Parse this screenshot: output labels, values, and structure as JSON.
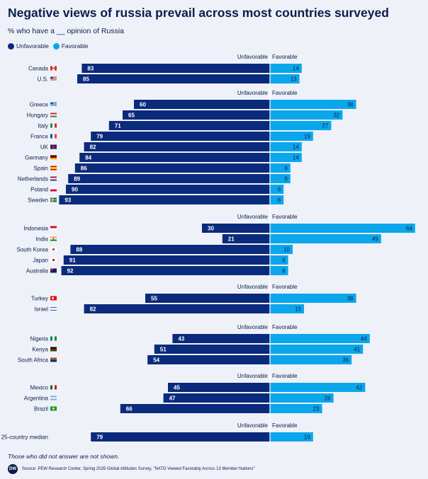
{
  "title": "Negative views of russia prevail across most countries surveyed",
  "subtitle": "% who have a __ opinion of Russia",
  "legend": {
    "unfavorable": "Unfavorable",
    "favorable": "Favorable"
  },
  "colors": {
    "unfavorable": "#0a2a7c",
    "favorable": "#0aa7ec",
    "background": "#eef1f7"
  },
  "footnote": "Those who did not answer are not shown.",
  "source": "Source: PEW Research Center, Spring 2025 Global Attitudes Survey, \"NATO Viewed Favorably Across 13 Member Nations\"",
  "logo_text": "DW",
  "chart_data": {
    "type": "bar",
    "orientation": "horizontal-diverging",
    "xlim": [
      0,
      100
    ],
    "series_names": [
      "Unfavorable",
      "Favorable"
    ],
    "groups": [
      {
        "header_left": "Unfavorable",
        "header_right": "Favorable",
        "rows": [
          {
            "country": "Canada",
            "flag": "canada",
            "unfavorable": 83,
            "favorable": 14
          },
          {
            "country": "U.S.",
            "flag": "us",
            "unfavorable": 85,
            "favorable": 13
          }
        ]
      },
      {
        "header_left": "Unfavorable",
        "header_right": "Favorable",
        "rows": [
          {
            "country": "Greece",
            "flag": "greece",
            "unfavorable": 60,
            "favorable": 38
          },
          {
            "country": "Hungary",
            "flag": "hungary",
            "unfavorable": 65,
            "favorable": 32
          },
          {
            "country": "Italy",
            "flag": "italy",
            "unfavorable": 71,
            "favorable": 27
          },
          {
            "country": "France",
            "flag": "france",
            "unfavorable": 79,
            "favorable": 19
          },
          {
            "country": "UK",
            "flag": "uk",
            "unfavorable": 82,
            "favorable": 14
          },
          {
            "country": "Germany",
            "flag": "germany",
            "unfavorable": 84,
            "favorable": 14
          },
          {
            "country": "Spain",
            "flag": "spain",
            "unfavorable": 86,
            "favorable": 9
          },
          {
            "country": "Netherlands",
            "flag": "netherlands",
            "unfavorable": 89,
            "favorable": 9
          },
          {
            "country": "Poland",
            "flag": "poland",
            "unfavorable": 90,
            "favorable": 6
          },
          {
            "country": "Sweden",
            "flag": "sweden",
            "unfavorable": 93,
            "favorable": 6
          }
        ]
      },
      {
        "header_left": "Unfavorable",
        "header_right": "Favorable",
        "rows": [
          {
            "country": "Indonesia",
            "flag": "indonesia",
            "unfavorable": 30,
            "favorable": 64
          },
          {
            "country": "India",
            "flag": "india",
            "unfavorable": 21,
            "favorable": 49
          },
          {
            "country": "South Korea",
            "flag": "south-korea",
            "unfavorable": 88,
            "favorable": 10
          },
          {
            "country": "Japan",
            "flag": "japan",
            "unfavorable": 91,
            "favorable": 8
          },
          {
            "country": "Australia",
            "flag": "australia",
            "unfavorable": 92,
            "favorable": 8
          }
        ]
      },
      {
        "header_left": "Unfavorable",
        "header_right": "Favorable",
        "rows": [
          {
            "country": "Turkey",
            "flag": "turkey",
            "unfavorable": 55,
            "favorable": 38
          },
          {
            "country": "Israel",
            "flag": "israel",
            "unfavorable": 82,
            "favorable": 15
          }
        ]
      },
      {
        "header_left": "Unfavorable",
        "header_right": "Favorable",
        "rows": [
          {
            "country": "Nigeria",
            "flag": "nigeria",
            "unfavorable": 43,
            "favorable": 44
          },
          {
            "country": "Kenya",
            "flag": "kenya",
            "unfavorable": 51,
            "favorable": 41
          },
          {
            "country": "South Africa",
            "flag": "south-africa",
            "unfavorable": 54,
            "favorable": 36
          }
        ]
      },
      {
        "header_left": "Unfavorable",
        "header_right": "Favorable",
        "rows": [
          {
            "country": "Mexico",
            "flag": "mexico",
            "unfavorable": 45,
            "favorable": 42
          },
          {
            "country": "Argentina",
            "flag": "argentina",
            "unfavorable": 47,
            "favorable": 28
          },
          {
            "country": "Brazil",
            "flag": "brazil",
            "unfavorable": 66,
            "favorable": 23
          }
        ]
      },
      {
        "header_left": "Unfavorable",
        "header_right": "Favorable",
        "rows": [
          {
            "country": "25-country median",
            "flag": "",
            "unfavorable": 79,
            "favorable": 19
          }
        ]
      }
    ]
  }
}
